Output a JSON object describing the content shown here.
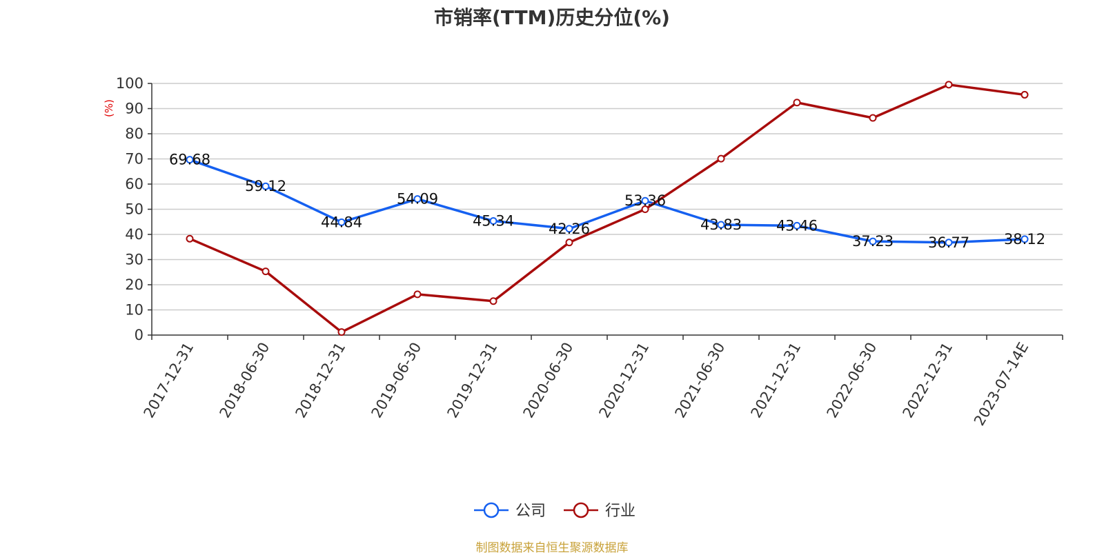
{
  "chart_data": {
    "type": "line",
    "title": "市销率(TTM)历史分位(%)",
    "ylabel": "(%)",
    "ylim": [
      0,
      100
    ],
    "yticks": [
      0,
      10,
      20,
      30,
      40,
      50,
      60,
      70,
      80,
      90,
      100
    ],
    "grid": true,
    "legend_placement": "bottom-center",
    "categories": [
      "2017-12-31",
      "2018-06-30",
      "2018-12-31",
      "2019-06-30",
      "2019-12-31",
      "2020-06-30",
      "2020-12-31",
      "2021-06-30",
      "2021-12-31",
      "2022-06-30",
      "2022-12-31",
      "2023-07-14E"
    ],
    "series": [
      {
        "name": "公司",
        "color": "#1560f0",
        "values": [
          69.68,
          59.12,
          44.84,
          54.09,
          45.34,
          42.26,
          53.36,
          43.83,
          43.46,
          37.23,
          36.77,
          38.12
        ],
        "labels": [
          "69.68",
          "59.12",
          "44.84",
          "54.09",
          "45.34",
          "42.26",
          "53.36",
          "43.83",
          "43.46",
          "37.23",
          "36.77",
          "38.12"
        ]
      },
      {
        "name": "行业",
        "color": "#a80c0c",
        "values": [
          38.3,
          25.3,
          1.2,
          16.2,
          13.5,
          36.8,
          50.0,
          70.1,
          92.4,
          86.3,
          99.5,
          95.5
        ]
      }
    ]
  },
  "source": "制图数据来自恒生聚源数据库"
}
